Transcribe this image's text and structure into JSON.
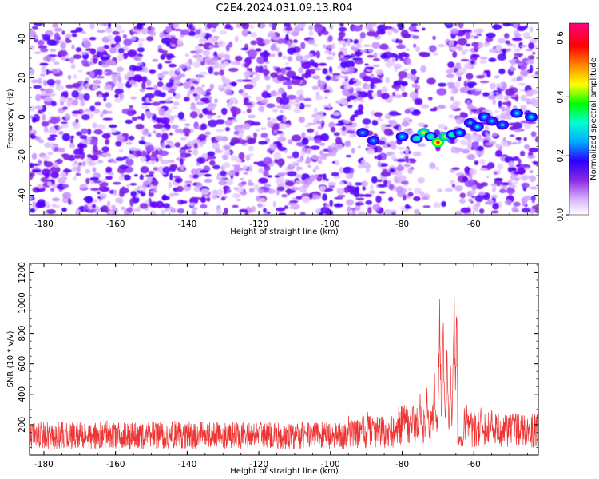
{
  "title": "C2E4.2024.031.09.13.R04",
  "chart_data": [
    {
      "type": "heatmap",
      "xlabel": "Height of straight line (km)",
      "ylabel": "Frequency (Hz)",
      "xlim": [
        -184,
        -42
      ],
      "ylim": [
        -50,
        48
      ],
      "xticks": [
        -180,
        -160,
        -140,
        -120,
        -100,
        -80,
        -60
      ],
      "yticks": [
        -40,
        -20,
        0,
        20,
        40
      ],
      "colorbar": {
        "label": "Normalized spectral amplitude",
        "range": [
          0.0,
          0.65
        ],
        "ticks": [
          0.0,
          0.2,
          0.4,
          0.6
        ],
        "colormap": [
          "#ffffff",
          "#d9b3ff",
          "#8a2be2",
          "#2a00ff",
          "#00aaff",
          "#00ffd0",
          "#00ff00",
          "#ffff00",
          "#ff8800",
          "#ff0000",
          "#ff0080"
        ]
      },
      "signal_track": [
        {
          "x": -91,
          "y": -8,
          "amp": 0.22
        },
        {
          "x": -88,
          "y": -12,
          "amp": 0.28
        },
        {
          "x": -80,
          "y": -10,
          "amp": 0.3
        },
        {
          "x": -76,
          "y": -11,
          "amp": 0.45
        },
        {
          "x": -74,
          "y": -8,
          "amp": 0.5
        },
        {
          "x": -72,
          "y": -10,
          "amp": 0.42
        },
        {
          "x": -70,
          "y": -13,
          "amp": 0.6
        },
        {
          "x": -68,
          "y": -10,
          "amp": 0.55
        },
        {
          "x": -66,
          "y": -9,
          "amp": 0.45
        },
        {
          "x": -64,
          "y": -8,
          "amp": 0.35
        },
        {
          "x": -61,
          "y": -3,
          "amp": 0.28
        },
        {
          "x": -59,
          "y": -5,
          "amp": 0.3
        },
        {
          "x": -57,
          "y": 0,
          "amp": 0.32
        },
        {
          "x": -55,
          "y": -2,
          "amp": 0.28
        },
        {
          "x": -52,
          "y": -4,
          "amp": 0.25
        },
        {
          "x": -48,
          "y": 2,
          "amp": 0.35
        },
        {
          "x": -44,
          "y": 0,
          "amp": 0.35
        }
      ]
    },
    {
      "type": "line",
      "xlabel": "Height of straight line (km)",
      "ylabel": "SNR (10 * v/v)",
      "xlim": [
        -184,
        -42
      ],
      "ylim": [
        0,
        1260
      ],
      "xticks": [
        -180,
        -160,
        -140,
        -120,
        -100,
        -80,
        -60
      ],
      "yticks": [
        200,
        400,
        600,
        800,
        1000,
        1200
      ],
      "color": "#ee3333",
      "peaks": [
        {
          "x": -79,
          "y": 330
        },
        {
          "x": -77,
          "y": 370
        },
        {
          "x": -75,
          "y": 440
        },
        {
          "x": -73,
          "y": 500
        },
        {
          "x": -71,
          "y": 620
        },
        {
          "x": -69.5,
          "y": 1100
        },
        {
          "x": -68.5,
          "y": 1000
        },
        {
          "x": -67.5,
          "y": 760
        },
        {
          "x": -66.5,
          "y": 640
        },
        {
          "x": -65.5,
          "y": 1260
        },
        {
          "x": -64.8,
          "y": 1050
        },
        {
          "x": -63.5,
          "y": 720
        },
        {
          "x": -62,
          "y": 380
        },
        {
          "x": -58,
          "y": 340
        },
        {
          "x": -55,
          "y": 330
        },
        {
          "x": -50,
          "y": 300
        }
      ]
    }
  ]
}
